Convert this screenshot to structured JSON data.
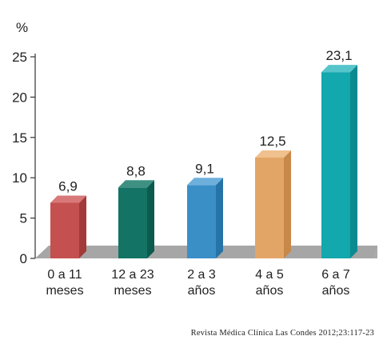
{
  "chart_data": {
    "type": "bar",
    "unit_label": "%",
    "categories": [
      [
        "0 a 11",
        "meses"
      ],
      [
        "12 a 23",
        "meses"
      ],
      [
        "2 a 3",
        "años"
      ],
      [
        "4 a 5",
        "años"
      ],
      [
        "6 a 7",
        "años"
      ]
    ],
    "values": [
      6.9,
      8.8,
      9.1,
      12.5,
      23.1
    ],
    "value_labels": [
      "6,9",
      "8,8",
      "9,1",
      "12,5",
      "23,1"
    ],
    "bar_colors": [
      {
        "front": "#c55050",
        "side": "#a33a3a",
        "top": "#d97878"
      },
      {
        "front": "#137364",
        "side": "#0c5a4e",
        "top": "#3e9182"
      },
      {
        "front": "#3a8fc7",
        "side": "#2673a8",
        "top": "#6eb0dc"
      },
      {
        "front": "#e3a566",
        "side": "#c8884a",
        "top": "#f0c08e"
      },
      {
        "front": "#13a7ae",
        "side": "#0d8a90",
        "top": "#56c5cb"
      }
    ],
    "ylim": [
      0,
      25
    ],
    "yticks": [
      0,
      5,
      10,
      15,
      20,
      25
    ],
    "grid": false
  },
  "credit": "Revista Médica Clínica Las Condes 2012;23:117-23"
}
